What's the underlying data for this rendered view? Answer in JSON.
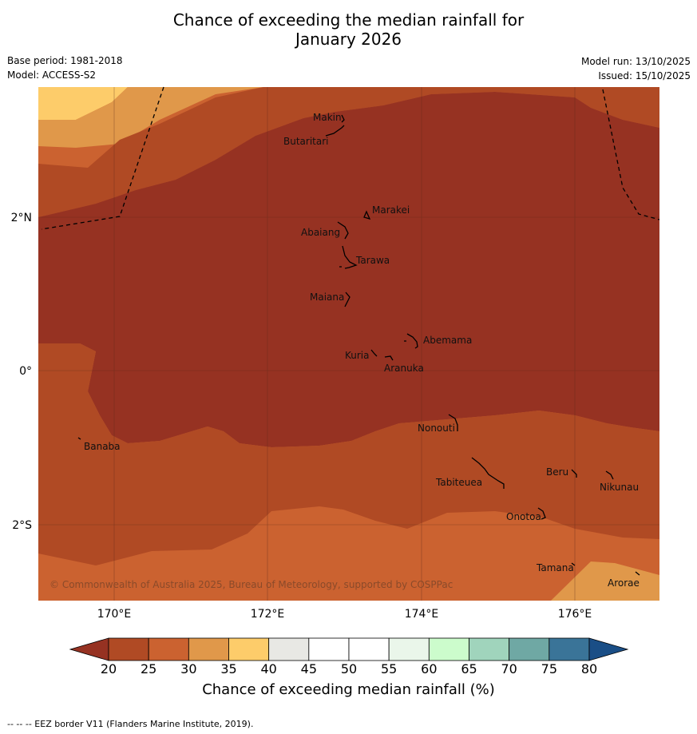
{
  "title": {
    "line1": "Chance of exceeding the median rainfall for",
    "line2": "January 2026"
  },
  "meta": {
    "base_period": "Base period: 1981-2018",
    "model": "Model: ACCESS-S2",
    "model_run": "Model run: 13/10/2025",
    "issued": "Issued: 15/10/2025"
  },
  "map": {
    "axes": {
      "lon_ticks": [
        "170°E",
        "172°E",
        "174°E",
        "176°E"
      ],
      "lat_ticks": [
        "2°N",
        "0°",
        "2°S"
      ]
    },
    "places": {
      "makin": "Makin",
      "butaritari": "Butaritari",
      "marakei": "Marakei",
      "abaiang": "Abaiang",
      "tarawa": "Tarawa",
      "maiana": "Maiana",
      "abemama": "Abemama",
      "kuria": "Kuria",
      "aranuka": "Aranuka",
      "banaba": "Banaba",
      "nonouti": "Nonouti",
      "beru": "Beru",
      "nikunau": "Nikunau",
      "tabiteuea": "Tabiteuea",
      "onotoa": "Onotoa",
      "tamana": "Tamana",
      "arorae": "Arorae"
    },
    "copyright": "© Commonwealth of Australia 2025, Bureau of Meteorology, supported by COSPPac"
  },
  "colorbar": {
    "ticks": [
      "20",
      "25",
      "30",
      "35",
      "40",
      "45",
      "50",
      "55",
      "60",
      "65",
      "70",
      "75",
      "80"
    ],
    "colors": [
      "#b04a24",
      "#cb6230",
      "#e0984a",
      "#fdcc6a",
      "#e8e8e4",
      "#ffffff",
      "#ffffff",
      "#eaf6ea",
      "#ccfccc",
      "#a0d4bc",
      "#6fa8a4",
      "#3a7498"
    ],
    "under_color": "#963222",
    "over_color": "#1a4e86",
    "label": "Chance of exceeding median rainfall (%)"
  },
  "footer": "--  --  -- EEZ border V11 (Flanders Marine Institute, 2019)."
}
